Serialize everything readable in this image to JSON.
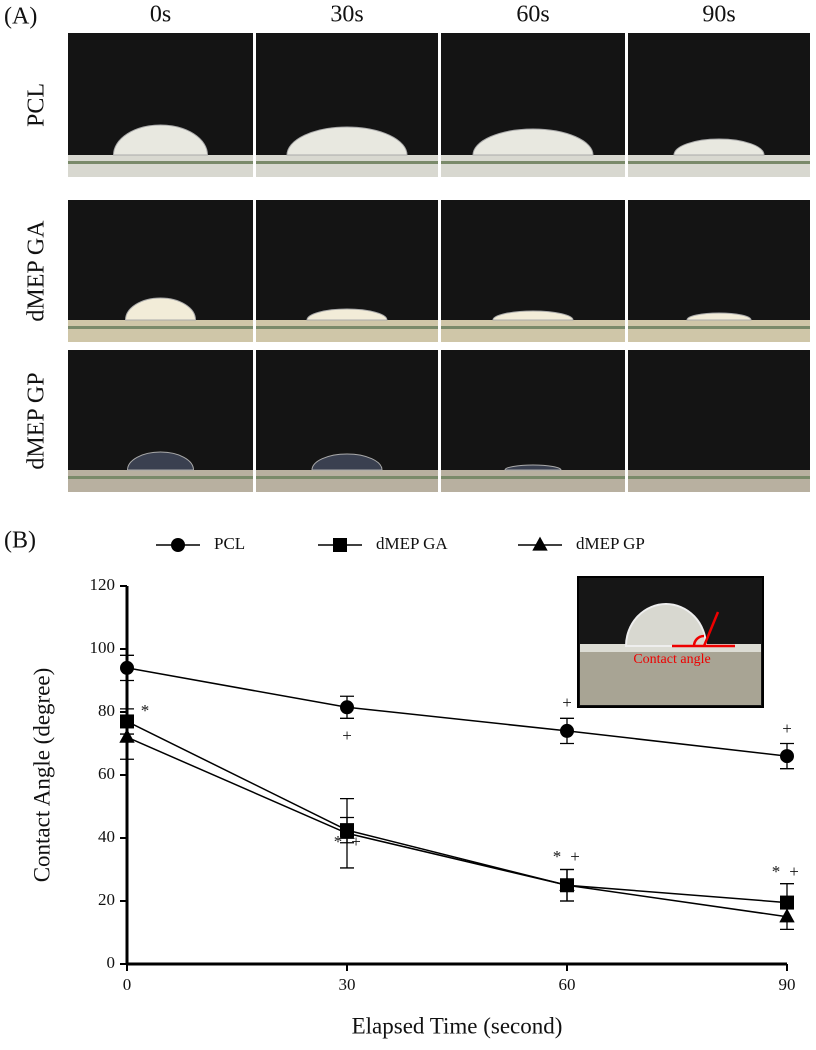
{
  "panel_a": {
    "label": "(A)",
    "columns": [
      "0s",
      "30s",
      "60s",
      "90s"
    ],
    "rows": [
      "PCL",
      "dMEP GA",
      "dMEP GP"
    ]
  },
  "chart_data": {
    "type": "line",
    "label": "(B)",
    "x_label": "Elapsed Time (second)",
    "y_label": "Contact Angle (degree)",
    "x": [
      0,
      30,
      60,
      90
    ],
    "xlim": [
      0,
      90
    ],
    "xticks": [
      0,
      30,
      60,
      90
    ],
    "ylim": [
      0,
      120
    ],
    "yticks": [
      0,
      20,
      40,
      60,
      80,
      100,
      120
    ],
    "series": [
      {
        "name": "PCL",
        "color": "#000000",
        "marker": "circle",
        "values": [
          94,
          81.5,
          74,
          66
        ],
        "errors": [
          4,
          3.5,
          4,
          4
        ]
      },
      {
        "name": "dMEP GA",
        "color": "#000000",
        "marker": "square",
        "values": [
          77,
          42.5,
          25,
          19.5
        ],
        "errors": [
          4,
          4,
          5,
          6
        ]
      },
      {
        "name": "dMEP GP",
        "color": "#000000",
        "marker": "triangle",
        "values": [
          72,
          41.5,
          25,
          15
        ],
        "errors": [
          7,
          11,
          5,
          4
        ]
      }
    ],
    "annotations": [
      "*",
      "*",
      "+",
      "*",
      "+",
      "*",
      "+",
      "+",
      "+",
      "+"
    ],
    "inset_label": "Contact angle"
  }
}
